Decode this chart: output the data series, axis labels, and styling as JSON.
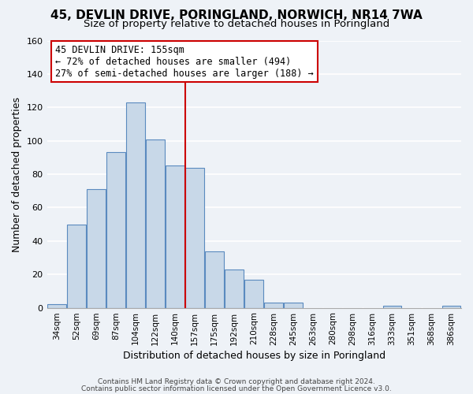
{
  "title": "45, DEVLIN DRIVE, PORINGLAND, NORWICH, NR14 7WA",
  "subtitle": "Size of property relative to detached houses in Poringland",
  "xlabel": "Distribution of detached houses by size in Poringland",
  "ylabel": "Number of detached properties",
  "bar_color": "#c8d8e8",
  "bar_edge_color": "#5a8abf",
  "bin_labels": [
    "34sqm",
    "52sqm",
    "69sqm",
    "87sqm",
    "104sqm",
    "122sqm",
    "140sqm",
    "157sqm",
    "175sqm",
    "192sqm",
    "210sqm",
    "228sqm",
    "245sqm",
    "263sqm",
    "280sqm",
    "298sqm",
    "316sqm",
    "333sqm",
    "351sqm",
    "368sqm",
    "386sqm"
  ],
  "bar_heights": [
    2,
    50,
    71,
    93,
    123,
    101,
    85,
    84,
    34,
    23,
    17,
    3,
    3,
    0,
    0,
    0,
    0,
    1,
    0,
    0,
    1
  ],
  "ylim": [
    0,
    160
  ],
  "yticks": [
    0,
    20,
    40,
    60,
    80,
    100,
    120,
    140,
    160
  ],
  "marker_label": "45 DEVLIN DRIVE: 155sqm",
  "annotation_line1": "← 72% of detached houses are smaller (494)",
  "annotation_line2": "27% of semi-detached houses are larger (188) →",
  "annotation_box_color": "#ffffff",
  "annotation_box_edge": "#cc0000",
  "vline_color": "#cc0000",
  "vline_x": 6.5,
  "footer1": "Contains HM Land Registry data © Crown copyright and database right 2024.",
  "footer2": "Contains public sector information licensed under the Open Government Licence v3.0.",
  "background_color": "#eef2f7",
  "grid_color": "#ffffff",
  "title_fontsize": 11,
  "subtitle_fontsize": 9.5,
  "ylabel_fontsize": 9,
  "xlabel_fontsize": 9
}
